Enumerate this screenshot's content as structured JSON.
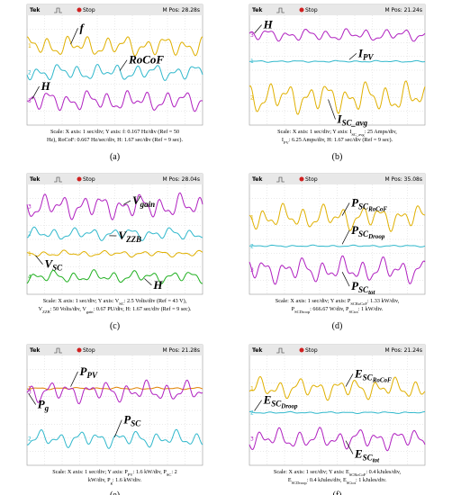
{
  "panels": [
    {
      "header": {
        "brand": "Tek",
        "status": "Stop",
        "position": "M Pos: 28.28s"
      },
      "traces": [
        {
          "channel": "1",
          "color": "#e0b000",
          "label": {
            "base": "f"
          }
        },
        {
          "channel": "2",
          "color": "#30b8cc",
          "label": {
            "base": "RoCoF"
          }
        },
        {
          "channel": "3",
          "color": "#b020c0",
          "label": {
            "base": "H"
          }
        }
      ],
      "caption": [
        [
          {
            "text": "Scale: X axis: 1 sec/div; Y axis: f: 0.167 Hz/div (Ref = 50"
          }
        ],
        [
          {
            "text": "Hz), RoCoF: 0.667 Hz/sec/div, H: 1.67 sec/div (Ref = 9 sec)."
          }
        ]
      ],
      "label": "(a)"
    },
    {
      "header": {
        "brand": "Tek",
        "status": "Stop",
        "position": "M Pos: 21.24s"
      },
      "traces": [
        {
          "channel": "3",
          "color": "#b020c0",
          "label": {
            "base": "H"
          }
        },
        {
          "channel": "1",
          "color": "#30b8cc",
          "label": {
            "base": "I",
            "sub": "PV"
          }
        },
        {
          "channel": "2",
          "color": "#e0b000",
          "label": {
            "base": "I",
            "sub": "SC_avg"
          }
        }
      ],
      "caption": [
        [
          {
            "text": "Scale: X axis: 1 sec/div; Y axis: I"
          },
          {
            "sub": "SC_avg"
          },
          {
            "text": ": 25 Amps/div,"
          }
        ],
        [
          {
            "text": "I"
          },
          {
            "sub": "PV"
          },
          {
            "text": ": 6.25 Amps/div, H: 1.67 sec/div (Ref = 9 sec)."
          }
        ]
      ],
      "label": "(b)"
    },
    {
      "header": {
        "brand": "Tek",
        "status": "Stop",
        "position": "M Pos: 28.04s"
      },
      "traces": [
        {
          "channel": "3",
          "color": "#b020c0",
          "label": {
            "base": "V",
            "sub": "gain"
          }
        },
        {
          "channel": "2",
          "color": "#30b8cc",
          "label": {
            "base": "V",
            "sub": "ZZB"
          }
        },
        {
          "channel": "1",
          "color": "#e0b000",
          "label": {
            "base": "V",
            "sub": "SC"
          }
        },
        {
          "channel": "4",
          "color": "#20b020",
          "label": {
            "base": "H"
          }
        }
      ],
      "caption": [
        [
          {
            "text": "Scale: X axis: 1 sec/div; Y axis: V"
          },
          {
            "sub": "SC"
          },
          {
            "text": ": 2.5 Volts/div (Ref = 43 V),"
          }
        ],
        [
          {
            "text": "V"
          },
          {
            "sub": "ZZB"
          },
          {
            "text": ": 50 Volts/div, V"
          },
          {
            "sub": "gain"
          },
          {
            "text": ": 0.67 PU/div, H: 1.67 sec/div (Ref = 9 sec)."
          }
        ]
      ],
      "label": "(c)"
    },
    {
      "header": {
        "brand": "Tek",
        "status": "Stop",
        "position": "M Pos: 35.08s"
      },
      "traces": [
        {
          "channel": "1",
          "color": "#e0b000",
          "label": {
            "base": "P",
            "sub": "SC",
            "subsub": "RoCoF"
          }
        },
        {
          "channel": "2",
          "color": "#30b8cc",
          "label": {
            "base": "P",
            "sub": "SC",
            "subsub": "Droop"
          }
        },
        {
          "channel": "3",
          "color": "#b020c0",
          "label": {
            "base": "P",
            "sub": "SC",
            "subsub": "tot"
          }
        }
      ],
      "caption": [
        [
          {
            "text": "Scale: X axis: 1 sec/div; Y axis: P"
          },
          {
            "sub": "SCRoCoF"
          },
          {
            "text": ": 1.33 kW/div,"
          }
        ],
        [
          {
            "text": "P"
          },
          {
            "sub": "SCDroop"
          },
          {
            "text": ": 666.67 W/div, P"
          },
          {
            "sub": "SCtot"
          },
          {
            "text": ": 1 kW/div."
          }
        ]
      ],
      "label": "(d)"
    },
    {
      "header": {
        "brand": "Tek",
        "status": "Stop",
        "position": "M Pos: 21.28s"
      },
      "traces": [
        {
          "channel": "1",
          "color": "#e08000",
          "label": {
            "base": "P",
            "sub": "PV"
          }
        },
        {
          "channel": "3",
          "color": "#b020c0",
          "label": {
            "base": "P",
            "sub": "g"
          }
        },
        {
          "channel": "2",
          "color": "#30b8cc",
          "label": {
            "base": "P",
            "sub": "SC"
          }
        }
      ],
      "caption": [
        [
          {
            "text": "Scale: X axis: 1 sec/div; Y axis: P"
          },
          {
            "sub": "PV"
          },
          {
            "text": ": 1.6 kW/div, P"
          },
          {
            "sub": "SC"
          },
          {
            "text": ": 2"
          }
        ],
        [
          {
            "text": "kW/div, P"
          },
          {
            "sub": "g"
          },
          {
            "text": ": 1.6 kW/div."
          }
        ]
      ],
      "label": "(e)"
    },
    {
      "header": {
        "brand": "Tek",
        "status": "Stop",
        "position": "M Pos: 21.24s"
      },
      "traces": [
        {
          "channel": "1",
          "color": "#e0b000",
          "label": {
            "base": "E",
            "sub": "SC",
            "subsub": "RoCoF"
          }
        },
        {
          "channel": "2",
          "color": "#30b8cc",
          "label": {
            "base": "E",
            "sub": "SC",
            "subsub": "Droop"
          }
        },
        {
          "channel": "3",
          "color": "#b020c0",
          "label": {
            "base": "E",
            "sub": "SC",
            "subsub": "tot"
          }
        }
      ],
      "caption": [
        [
          {
            "text": "Scale: X axis: 1 sec/div; Y axis: E"
          },
          {
            "sub": "SCRoCoF"
          },
          {
            "text": ": 0.4 kJules/div,"
          }
        ],
        [
          {
            "text": "E"
          },
          {
            "sub": "SCDroop"
          },
          {
            "text": ": 0.4 kJules/div, E"
          },
          {
            "sub": "SCtot"
          },
          {
            "text": ": 1 kJules/div."
          }
        ]
      ],
      "label": "(f)"
    }
  ]
}
